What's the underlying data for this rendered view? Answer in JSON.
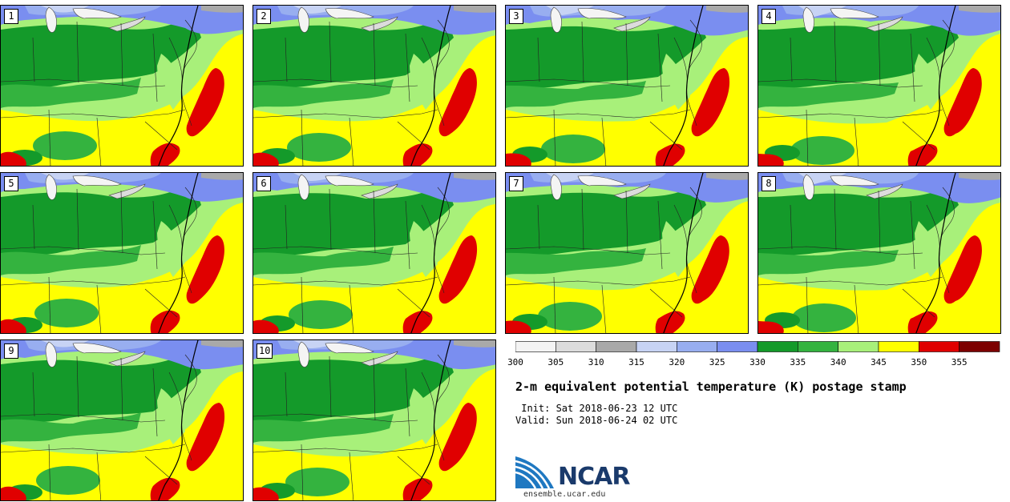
{
  "panels": [
    {
      "label": "1"
    },
    {
      "label": "2"
    },
    {
      "label": "3"
    },
    {
      "label": "4"
    },
    {
      "label": "5"
    },
    {
      "label": "6"
    },
    {
      "label": "7"
    },
    {
      "label": "8"
    },
    {
      "label": "9"
    },
    {
      "label": "10"
    }
  ],
  "colorbar": {
    "ticks": [
      "300",
      "305",
      "310",
      "315",
      "320",
      "325",
      "330",
      "335",
      "340",
      "345",
      "350",
      "355"
    ],
    "colors": [
      "#f4f4f4",
      "#dcdcdc",
      "#a9a9a9",
      "#c7d3f4",
      "#98aef0",
      "#7a8ef0",
      "#149a2a",
      "#34b33f",
      "#a8f07a",
      "#ffff00",
      "#e00000",
      "#7d0000"
    ]
  },
  "title": "2-m equivalent potential temperature (K) postage stamp",
  "init": " Init: Sat 2018-06-23 12 UTC",
  "valid": "Valid: Sun 2018-06-24 02 UTC",
  "logo": {
    "text": "NCAR",
    "url": "ensemble.ucar.edu"
  }
}
